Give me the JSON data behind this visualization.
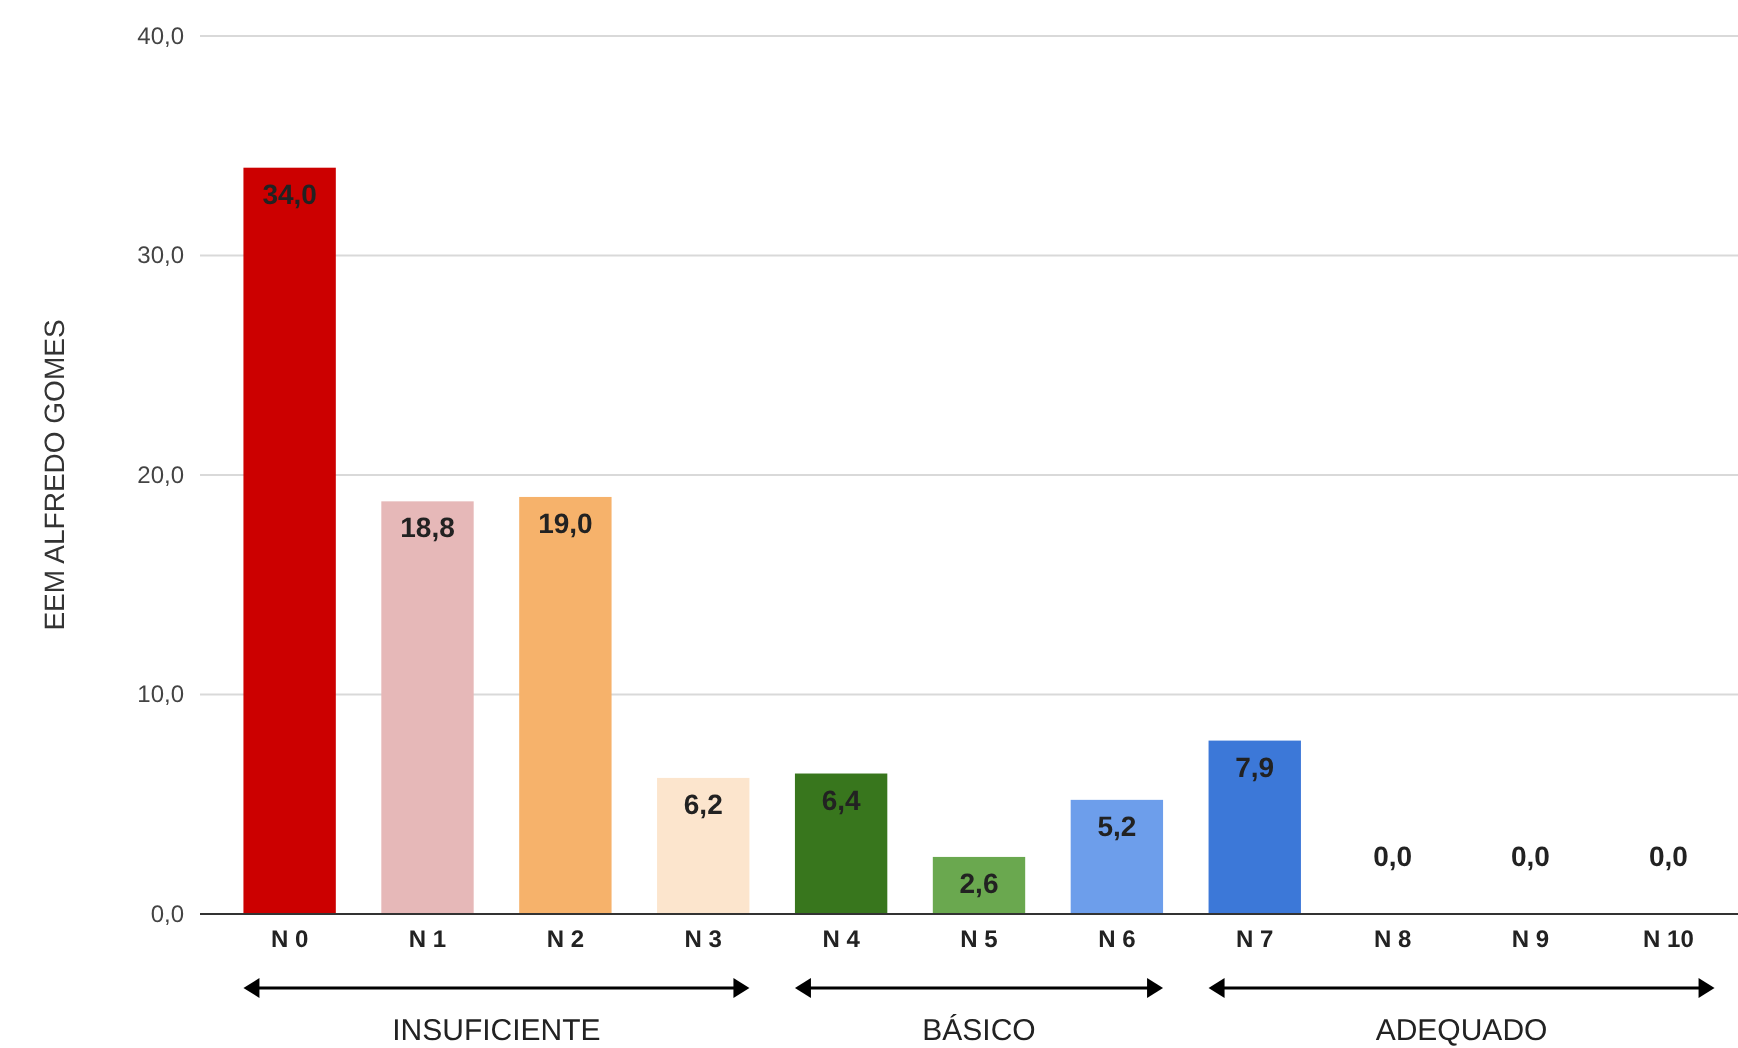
{
  "chart_data": {
    "type": "bar",
    "ylabel": "EEM ALFREDO GOMES",
    "categories": [
      "N 0",
      "N 1",
      "N 2",
      "N 3",
      "N 4",
      "N 5",
      "N 6",
      "N 7",
      "N 8",
      "N 9",
      "N 10"
    ],
    "values": [
      34.0,
      18.8,
      19.0,
      6.2,
      6.4,
      2.6,
      5.2,
      7.9,
      0.0,
      0.0,
      0.0
    ],
    "colors": [
      "#cc0000",
      "#e6b8b8",
      "#f6b26b",
      "#fce5cd",
      "#38761d",
      "#6aa84f",
      "#6d9eeb",
      "#3c78d8",
      "#cccccc",
      "#cccccc",
      "#cccccc"
    ],
    "value_labels": [
      "34,0",
      "18,8",
      "19,0",
      "6,2",
      "6,4",
      "2,6",
      "5,2",
      "7,9",
      "0,0",
      "0,0",
      "0,0"
    ],
    "ylim": [
      0,
      40
    ],
    "yticks": [
      {
        "value": 0,
        "label": "0,0"
      },
      {
        "value": 10,
        "label": "10,0"
      },
      {
        "value": 20,
        "label": "20,0"
      },
      {
        "value": 30,
        "label": "30,0"
      },
      {
        "value": 40,
        "label": "40,0"
      }
    ],
    "grid": "y",
    "annotations": [
      "INSUFICIENTE",
      "BÁSICO",
      "ADEQUADO"
    ]
  }
}
